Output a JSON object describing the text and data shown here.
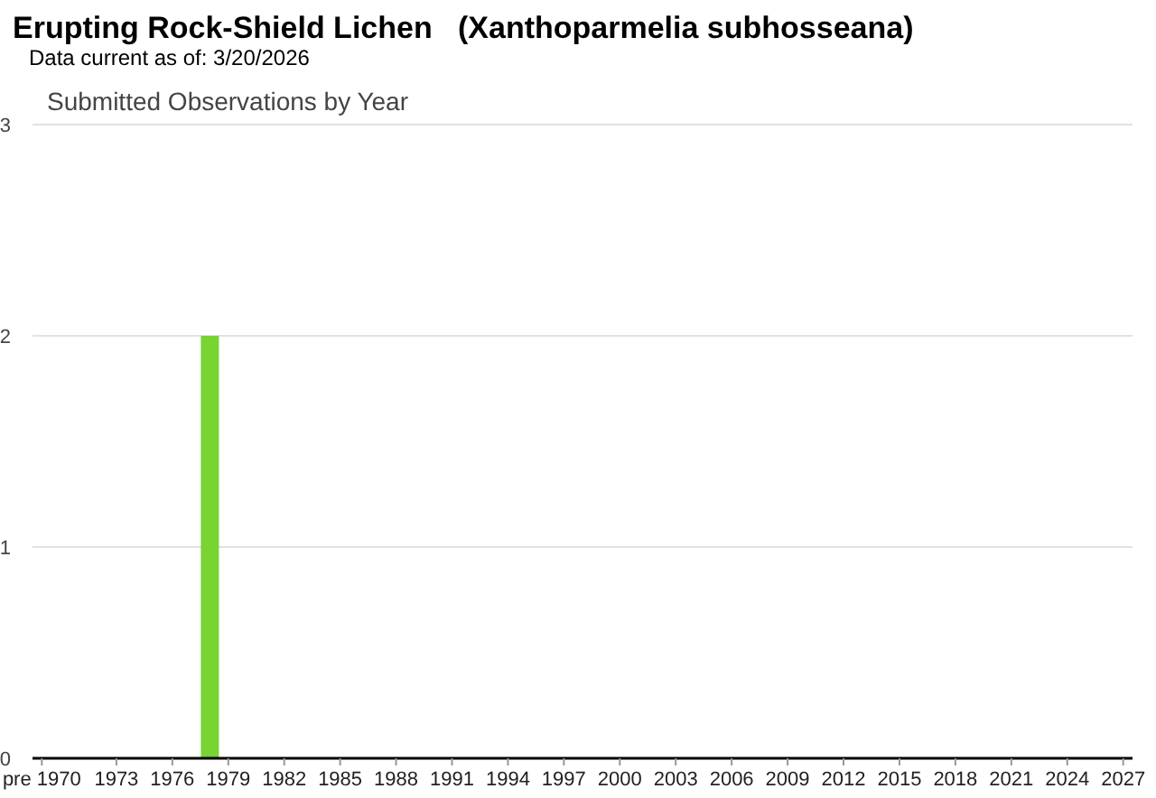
{
  "chart_data": {
    "type": "bar",
    "title": "Erupting Rock-Shield Lichen   (Xanthoparmelia subhosseana)",
    "annotations": [
      "Data current as of: 3/20/2026"
    ],
    "subtitle": "Submitted Observations by Year",
    "categories": [
      "pre 1970",
      null,
      null,
      null,
      "1973",
      null,
      null,
      "1976",
      null,
      null,
      "1979",
      null,
      null,
      "1982",
      null,
      null,
      "1985",
      null,
      null,
      "1988",
      null,
      null,
      "1991",
      null,
      null,
      "1994",
      null,
      null,
      "1997",
      null,
      null,
      "2000",
      null,
      null,
      "2003",
      null,
      null,
      "2006",
      null,
      null,
      "2009",
      null,
      null,
      "2012",
      null,
      null,
      "2015",
      null,
      null,
      "2018",
      null,
      null,
      "2021",
      null,
      null,
      "2024",
      null,
      null,
      "2027"
    ],
    "values": [
      0,
      0,
      0,
      0,
      0,
      0,
      0,
      0,
      0,
      2,
      0,
      0,
      0,
      0,
      0,
      0,
      0,
      0,
      0,
      0,
      0,
      0,
      0,
      0,
      0,
      0,
      0,
      0,
      0,
      0,
      0,
      0,
      0,
      0,
      0,
      0,
      0,
      0,
      0,
      0,
      0,
      0,
      0,
      0,
      0,
      0,
      0,
      0,
      0,
      0,
      0,
      0,
      0,
      0,
      0,
      0,
      0,
      0,
      0
    ],
    "color": "#79d332",
    "ylim": [
      0,
      3
    ],
    "yticks": [
      0,
      1,
      2,
      3
    ],
    "grid": "y"
  }
}
